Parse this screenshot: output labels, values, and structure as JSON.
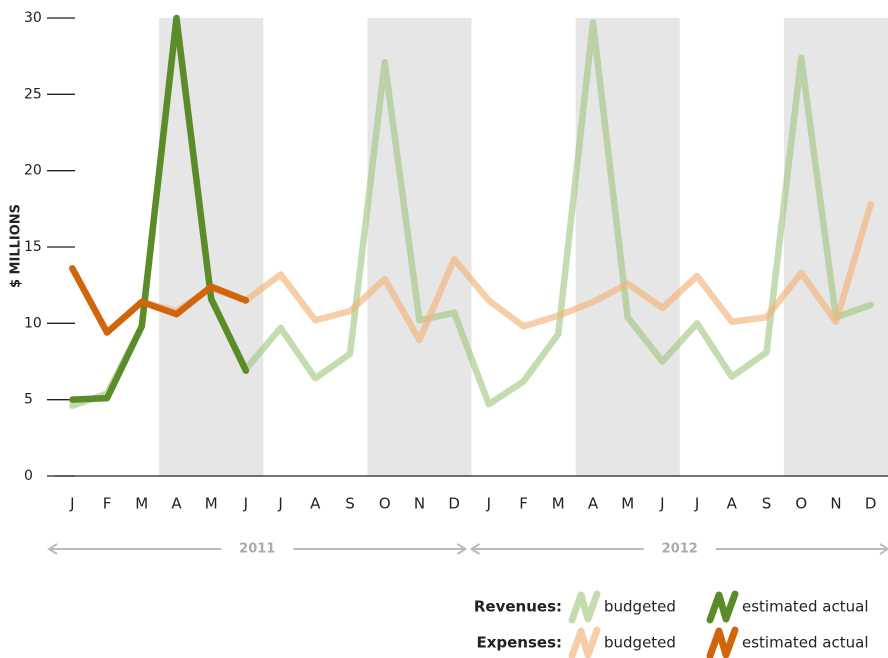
{
  "chart_data": {
    "type": "line",
    "y_label": "$ MILLIONS",
    "categories": [
      "J",
      "F",
      "M",
      "A",
      "M",
      "J",
      "J",
      "A",
      "S",
      "O",
      "N",
      "D",
      "J",
      "F",
      "M",
      "A",
      "M",
      "J",
      "J",
      "A",
      "S",
      "O",
      "N",
      "D"
    ],
    "years": [
      "2011",
      "2012"
    ],
    "legend_labels": [
      "Revenues:",
      "Expenses:"
    ],
    "series": [
      {
        "name": "budgeted",
        "color": "#9cc47a",
        "opacity": 0.6,
        "values": [
          4.6,
          5.4,
          9.8,
          29.8,
          11.6,
          7.0,
          9.7,
          6.4,
          8.0,
          27.1,
          10.2,
          10.7,
          4.7,
          6.2,
          9.3,
          29.7,
          10.4,
          7.5,
          10.0,
          6.5,
          8.1,
          27.4,
          10.4,
          11.2
        ]
      },
      {
        "name": "estimated actual",
        "color": "#5b8c2a",
        "opacity": 1,
        "values": [
          5.0,
          5.1,
          9.8,
          30.0,
          11.6,
          6.9,
          null,
          null,
          null,
          null,
          null,
          null,
          null,
          null,
          null,
          null,
          null,
          null,
          null,
          null,
          null,
          null,
          null,
          null
        ]
      },
      {
        "name": "budgeted",
        "color": "#f3b47a",
        "opacity": 0.65,
        "values": [
          13.6,
          9.4,
          11.4,
          10.8,
          12.3,
          11.5,
          13.2,
          10.2,
          10.8,
          12.9,
          8.9,
          14.2,
          11.5,
          9.8,
          10.5,
          11.4,
          12.6,
          11.0,
          13.1,
          10.1,
          10.4,
          13.3,
          10.1,
          17.8
        ]
      },
      {
        "name": "estimated actual",
        "color": "#d0650c",
        "opacity": 1,
        "values": [
          13.6,
          9.4,
          11.4,
          10.6,
          12.4,
          11.5,
          null,
          null,
          null,
          null,
          null,
          null,
          null,
          null,
          null,
          null,
          null,
          null,
          null,
          null,
          null,
          null,
          null,
          null
        ]
      }
    ],
    "ylim": [
      0,
      30
    ],
    "yticks": [
      0,
      5,
      10,
      15,
      20,
      25,
      30
    ],
    "band_color": "#e6e6e6"
  }
}
